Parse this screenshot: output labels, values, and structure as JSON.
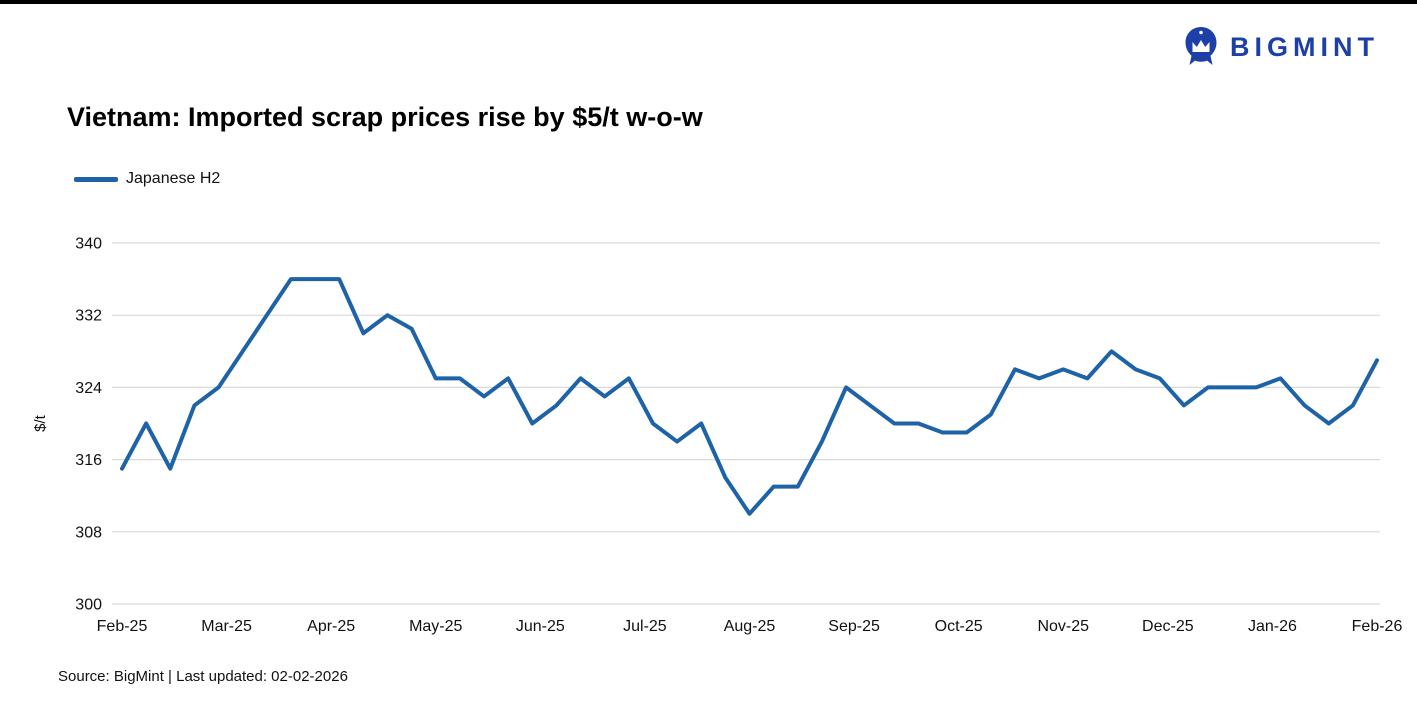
{
  "header": {
    "logo_text": "BIGMINT"
  },
  "chart_data": {
    "type": "line",
    "title": "Vietnam: Imported scrap prices rise by $5/t w-o-w",
    "xlabel": "",
    "ylabel": "$/t",
    "ylim": [
      300,
      340
    ],
    "y_ticks": [
      300,
      308,
      316,
      324,
      332,
      340
    ],
    "grid": "horizontal",
    "legend_position": "top-left",
    "categories": [
      "Feb-25",
      "Mar-25",
      "Apr-25",
      "May-25",
      "Jun-25",
      "Jul-25",
      "Aug-25",
      "Sep-25",
      "Oct-25",
      "Nov-25",
      "Dec-25",
      "Jan-26",
      "Feb-26"
    ],
    "series": [
      {
        "name": "Japanese H2",
        "color": "#1e62a8",
        "values": [
          315,
          320,
          315,
          322,
          324,
          328,
          332,
          336,
          336,
          336,
          330,
          332,
          330.5,
          325,
          325,
          323,
          325,
          320,
          322,
          325,
          323,
          325,
          320,
          318,
          320,
          314,
          310,
          313,
          313,
          318,
          324,
          322,
          320,
          320,
          319,
          319,
          321,
          326,
          325,
          326,
          325,
          328,
          326,
          325,
          322,
          324,
          324,
          324,
          325,
          322,
          320,
          322,
          327
        ]
      }
    ]
  },
  "footer": {
    "source_text": "Source: BigMint | Last updated: 02-02-2026"
  }
}
